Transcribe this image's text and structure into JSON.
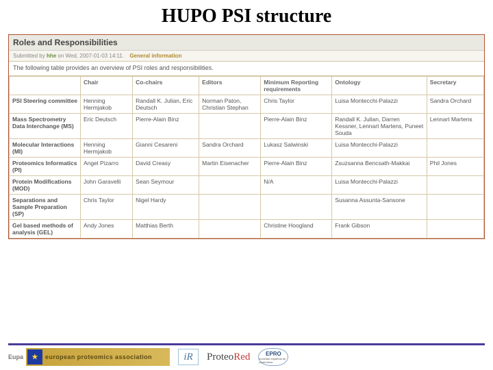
{
  "title": "HUPO PSI structure",
  "section_header": "Roles and Responsibilities",
  "meta": {
    "prefix": "Submitted by",
    "user": "hhe",
    "on": "on Wed, 2007-01-03 14:11.",
    "category": "General information"
  },
  "intro": "The following table provides an overview of PSI roles and responsibilities.",
  "table": {
    "headers": [
      "",
      "Chair",
      "Co-chairs",
      "Editors",
      "Minimum Reporting requirements",
      "Ontology",
      "Secretary"
    ],
    "rows": [
      {
        "label": "PSI Steering committee",
        "cells": [
          "Henning Hermjakob",
          "Randall K. Julian, Eric Deutsch",
          "Norman Paton, Christian Stephan",
          "Chris Taylor",
          "Luisa Montecchi-Palazzi",
          "Sandra Orchard"
        ]
      },
      {
        "label": "Mass Spectrometry Data Interchange (MS)",
        "cells": [
          "Eric Deutsch",
          "Pierre-Alain Binz",
          "",
          "Pierre-Alain Binz",
          "Randall K. Julian, Darren Kessner, Lennart Martens, Puneet Souda",
          "Lennart Martens"
        ]
      },
      {
        "label": "Molecular Interactions (MI)",
        "cells": [
          "Henning Hermjakob",
          "Gianni Cesareni",
          "Sandra Orchard",
          "Lukasz Salwinski",
          "Luisa Montecchi-Palazzi",
          ""
        ]
      },
      {
        "label": "Proteomics Informatics (PI)",
        "cells": [
          "Angel Pizarro",
          "David Creasy",
          "Martin Eisenacher",
          "Pierre-Alain Binz",
          "Zsuzsanna Bencsath-Makkai",
          "Phil Jones"
        ]
      },
      {
        "label": "Protein Modifications (MOD)",
        "cells": [
          "John Garavelli",
          "Sean Seymour",
          "",
          "N/A",
          "Luisa Montecchi-Palazzi",
          ""
        ]
      },
      {
        "label": "Separations and Sample Preparation (SP)",
        "cells": [
          "Chris Taylor",
          "Nigel Hardy",
          "",
          "",
          "Susanna Assunta-Sansone",
          ""
        ]
      },
      {
        "label": "Gel based methods of analysis (GEL)",
        "cells": [
          "Andy Jones",
          "Matthias Berth",
          "",
          "Christine Hoogland",
          "Frank Gibson",
          ""
        ]
      }
    ]
  },
  "logos": {
    "eupa_prefix": "Eupa",
    "eupa_text": "european proteomics association",
    "ir": "iR",
    "proteored_a": "Proteo",
    "proteored_b": "Red",
    "sepro": "EPRO",
    "sepro_sub": "sociedad española de proteómica"
  },
  "colors": {
    "title_color": "#000000",
    "panel_border": "#b05030",
    "header_bg": "#e9e9e1",
    "cell_border": "#d5c7a7",
    "footer_line": "#4a3a99"
  }
}
